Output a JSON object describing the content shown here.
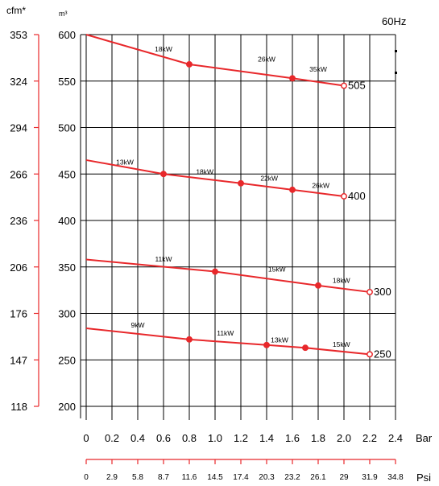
{
  "chart_data": {
    "type": "line",
    "frequency_label": "60Hz",
    "x_axis": {
      "unit": "Bar",
      "range": [
        0,
        2.4
      ],
      "ticks": [
        "0",
        "0.2",
        "0.4",
        "0.6",
        "0.8",
        "1.0",
        "1.2",
        "1.4",
        "1.6",
        "1.8",
        "2.0",
        "2.2",
        "2.4"
      ]
    },
    "psi_axis": {
      "unit": "Psi",
      "ticks": [
        "0",
        "2.9",
        "5.8",
        "8.7",
        "11.6",
        "14.5",
        "17.4",
        "20.3",
        "23.2",
        "26.1",
        "29",
        "31.9",
        "34.8"
      ]
    },
    "y_axis_m3": {
      "unit": "m³",
      "range": [
        200,
        600
      ],
      "ticks": [
        "600",
        "550",
        "500",
        "450",
        "400",
        "350",
        "300",
        "250",
        "200"
      ]
    },
    "y_axis_cfm": {
      "unit": "cfm*",
      "ticks": [
        "353",
        "324",
        "294",
        "266",
        "236",
        "206",
        "176",
        "147",
        "118"
      ]
    },
    "series": [
      {
        "name": "505",
        "x": [
          0,
          0.8,
          1.6,
          2.0
        ],
        "y": [
          600,
          568,
          553,
          545
        ],
        "markers": [
          0.8,
          1.6,
          2.0
        ],
        "power_labels": [
          {
            "x": 0.6,
            "y": 582,
            "text": "18kW"
          },
          {
            "x": 1.4,
            "y": 571,
            "text": "26kW"
          },
          {
            "x": 1.8,
            "y": 560,
            "text": "35kW"
          }
        ]
      },
      {
        "name": "400",
        "x": [
          0,
          0.6,
          1.2,
          1.6,
          2.0
        ],
        "y": [
          465,
          450,
          440,
          433,
          426
        ],
        "markers": [
          0.6,
          1.2,
          1.6,
          2.0
        ],
        "power_labels": [
          {
            "x": 0.3,
            "y": 460,
            "text": "13kW"
          },
          {
            "x": 0.92,
            "y": 450,
            "text": "18kW"
          },
          {
            "x": 1.42,
            "y": 443,
            "text": "22kW"
          },
          {
            "x": 1.82,
            "y": 435,
            "text": "26kW"
          }
        ]
      },
      {
        "name": "300",
        "x": [
          0,
          1.0,
          1.8,
          2.2
        ],
        "y": [
          358,
          345,
          330,
          323
        ],
        "markers": [
          1.0,
          1.8,
          2.2
        ],
        "power_labels": [
          {
            "x": 0.6,
            "y": 356,
            "text": "11kW"
          },
          {
            "x": 1.48,
            "y": 345,
            "text": "15kW"
          },
          {
            "x": 1.98,
            "y": 333,
            "text": "18kW"
          }
        ]
      },
      {
        "name": "250",
        "x": [
          0,
          0.8,
          1.4,
          1.7,
          2.2
        ],
        "y": [
          284,
          272,
          266,
          263,
          256
        ],
        "markers": [
          0.8,
          1.4,
          1.7,
          2.2
        ],
        "power_labels": [
          {
            "x": 0.4,
            "y": 285,
            "text": "9kW"
          },
          {
            "x": 1.08,
            "y": 276,
            "text": "11kW"
          },
          {
            "x": 1.5,
            "y": 269,
            "text": "13kW"
          },
          {
            "x": 1.98,
            "y": 264,
            "text": "15kW"
          }
        ]
      }
    ],
    "colors": {
      "series": "#e8282b",
      "cfm_axis": "#e8282b",
      "psi_axis": "#e8282b",
      "grid": "#000000"
    }
  }
}
